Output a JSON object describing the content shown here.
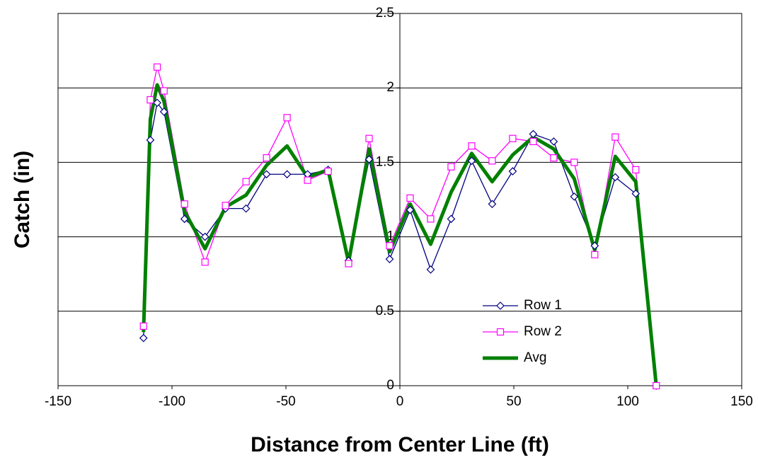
{
  "chart_data": {
    "type": "line",
    "x_label": "Distance from Center Line (ft)",
    "y_label": "Catch (in)",
    "x": [
      -112.5,
      -109.5,
      -106.5,
      -103.5,
      -94.5,
      -85.5,
      -76.5,
      -67.5,
      -58.5,
      -49.5,
      -40.5,
      -31.5,
      -22.5,
      -13.5,
      -4.5,
      4.5,
      13.5,
      22.5,
      31.5,
      40.5,
      49.5,
      58.5,
      67.5,
      76.5,
      85.5,
      94.5,
      103.5,
      112.5
    ],
    "series": [
      {
        "name": "Row 1",
        "color": "#000080",
        "marker": "diamond",
        "values": [
          0.32,
          1.65,
          1.9,
          1.84,
          1.12,
          1.0,
          1.19,
          1.19,
          1.42,
          1.42,
          1.42,
          1.45,
          0.84,
          1.52,
          0.85,
          1.18,
          0.78,
          1.12,
          1.51,
          1.22,
          1.44,
          1.69,
          1.64,
          1.27,
          0.94,
          1.4,
          1.29,
          0
        ]
      },
      {
        "name": "Row 2",
        "color": "#ff00ff",
        "marker": "square",
        "values": [
          0.4,
          1.92,
          2.14,
          1.98,
          1.22,
          0.83,
          1.21,
          1.37,
          1.53,
          1.8,
          1.38,
          1.44,
          0.82,
          1.66,
          0.94,
          1.26,
          1.12,
          1.47,
          1.61,
          1.51,
          1.66,
          1.64,
          1.53,
          1.5,
          0.88,
          1.67,
          1.45,
          0
        ]
      },
      {
        "name": "Avg",
        "color": "#008000",
        "marker": "none",
        "values": [
          0.36,
          1.79,
          2.02,
          1.91,
          1.17,
          0.92,
          1.2,
          1.28,
          1.48,
          1.61,
          1.4,
          1.45,
          0.83,
          1.59,
          0.9,
          1.22,
          0.95,
          1.3,
          1.56,
          1.37,
          1.55,
          1.67,
          1.59,
          1.39,
          0.91,
          1.54,
          1.37,
          0
        ]
      }
    ],
    "xlim": [
      -150,
      150
    ],
    "xticks": [
      -150,
      -100,
      -50,
      0,
      50,
      100,
      150
    ],
    "ylim": [
      0,
      2.5
    ],
    "yticks": [
      0,
      0.5,
      1,
      1.5,
      2,
      2.5
    ],
    "grid": true
  }
}
